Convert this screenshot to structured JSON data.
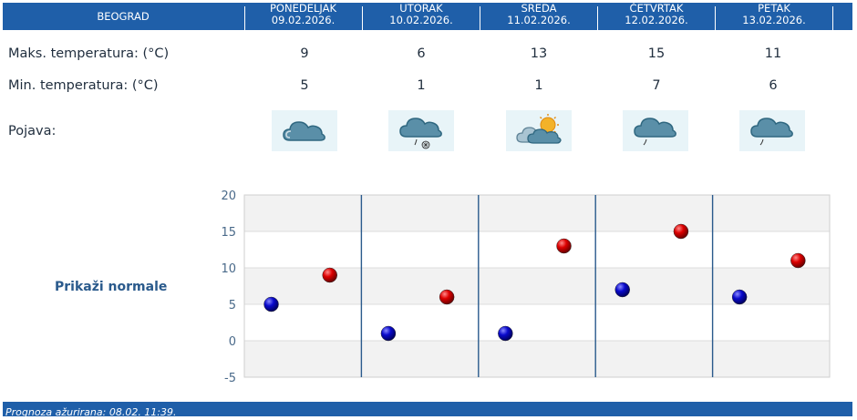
{
  "header": {
    "city": "BEOGRAD",
    "days": [
      {
        "name": "PONEDELJAK",
        "date": "09.02.2026."
      },
      {
        "name": "UTORAK",
        "date": "10.02.2026."
      },
      {
        "name": "SREDA",
        "date": "11.02.2026."
      },
      {
        "name": "ČETVRTAK",
        "date": "12.02.2026."
      },
      {
        "name": "PETAK",
        "date": "13.02.2026."
      }
    ]
  },
  "rows": {
    "max_label": "Maks. temperatura: (°C)",
    "min_label": "Min. temperatura: (°C)",
    "phenomenon_label": "Pojava:",
    "max": [
      "9",
      "6",
      "13",
      "15",
      "11"
    ],
    "min": [
      "5",
      "1",
      "1",
      "7",
      "6"
    ],
    "icons": [
      "cloud-icon",
      "cloud-rain-snow-icon",
      "sun-behind-clouds-icon",
      "cloud-light-rain-icon",
      "cloud-light-rain-icon"
    ]
  },
  "normals_link": "Prikaži normale",
  "footer": "Prognoza ažurirana:  08.02. 11:39.",
  "colors": {
    "accent": "#1f5fa9",
    "max_dot": "#cc0000",
    "min_dot": "#0000bb"
  },
  "chart_data": {
    "type": "scatter",
    "categories": [
      "09.02.2026.",
      "10.02.2026.",
      "11.02.2026.",
      "12.02.2026.",
      "13.02.2026."
    ],
    "series": [
      {
        "values": [
          5,
          1,
          1,
          7,
          6
        ]
      },
      {
        "values": [
          9,
          6,
          13,
          15,
          11
        ]
      }
    ],
    "ylim": [
      -5,
      20
    ],
    "yticks": [
      "20",
      "15",
      "10",
      "5",
      "0",
      "-5"
    ],
    "grid": true
  }
}
